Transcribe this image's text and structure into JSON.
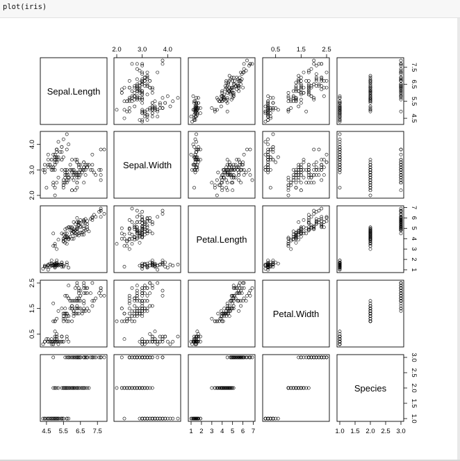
{
  "code_cell": {
    "text": "plot(iris)"
  },
  "chart_data": {
    "type": "scatter",
    "variables": [
      "Sepal.Length",
      "Sepal.Width",
      "Petal.Length",
      "Petal.Width",
      "Species"
    ],
    "ranges": [
      [
        4.3,
        7.9
      ],
      [
        2.0,
        4.4
      ],
      [
        1.0,
        6.9
      ],
      [
        0.1,
        2.5
      ],
      [
        1,
        3
      ]
    ],
    "ticks": [
      [
        "4.5",
        "5.5",
        "6.5",
        "7.5"
      ],
      [
        "2.0",
        "3.0",
        "4.0"
      ],
      [
        "1",
        "2",
        "3",
        "4",
        "5",
        "6",
        "7"
      ],
      [
        "0.5",
        "1.5",
        "2.5"
      ],
      [
        "1.0",
        "1.5",
        "2.0",
        "2.5",
        "3.0"
      ]
    ],
    "tick_axis": [
      "bottom",
      "top",
      "bottom",
      "top",
      "right"
    ],
    "ticks_left": [
      "2.0",
      "3.0",
      "4.0"
    ],
    "ticks_left_var": 1,
    "ticks_left_alt": [
      "0.5",
      "1.5",
      "2.5"
    ],
    "ticks_right_alt": [
      "1",
      "2",
      "3",
      "4",
      "5",
      "6",
      "7"
    ],
    "ticks_right_top": [
      "4.5",
      "5.5",
      "6.5",
      "7.5"
    ],
    "points": [
      [
        5.1,
        3.5,
        1.4,
        0.2,
        1
      ],
      [
        4.9,
        3.0,
        1.4,
        0.2,
        1
      ],
      [
        4.7,
        3.2,
        1.3,
        0.2,
        1
      ],
      [
        4.6,
        3.1,
        1.5,
        0.2,
        1
      ],
      [
        5.0,
        3.6,
        1.4,
        0.2,
        1
      ],
      [
        5.4,
        3.9,
        1.7,
        0.4,
        1
      ],
      [
        4.6,
        3.4,
        1.4,
        0.3,
        1
      ],
      [
        5.0,
        3.4,
        1.5,
        0.2,
        1
      ],
      [
        4.4,
        2.9,
        1.4,
        0.2,
        1
      ],
      [
        4.9,
        3.1,
        1.5,
        0.1,
        1
      ],
      [
        5.4,
        3.7,
        1.5,
        0.2,
        1
      ],
      [
        4.8,
        3.4,
        1.6,
        0.2,
        1
      ],
      [
        4.8,
        3.0,
        1.4,
        0.1,
        1
      ],
      [
        4.3,
        3.0,
        1.1,
        0.1,
        1
      ],
      [
        5.8,
        4.0,
        1.2,
        0.2,
        1
      ],
      [
        5.7,
        4.4,
        1.5,
        0.4,
        1
      ],
      [
        5.4,
        3.9,
        1.3,
        0.4,
        1
      ],
      [
        5.1,
        3.5,
        1.4,
        0.3,
        1
      ],
      [
        5.7,
        3.8,
        1.7,
        0.3,
        1
      ],
      [
        5.1,
        3.8,
        1.5,
        0.3,
        1
      ],
      [
        5.4,
        3.4,
        1.7,
        0.2,
        1
      ],
      [
        5.1,
        3.7,
        1.5,
        0.4,
        1
      ],
      [
        4.6,
        3.6,
        1.0,
        0.2,
        1
      ],
      [
        5.1,
        3.3,
        1.7,
        0.5,
        1
      ],
      [
        4.8,
        3.4,
        1.9,
        0.2,
        1
      ],
      [
        5.0,
        3.0,
        1.6,
        0.2,
        1
      ],
      [
        5.0,
        3.4,
        1.6,
        0.4,
        1
      ],
      [
        5.2,
        3.5,
        1.5,
        0.2,
        1
      ],
      [
        5.2,
        3.4,
        1.4,
        0.2,
        1
      ],
      [
        4.7,
        3.2,
        1.6,
        0.2,
        1
      ],
      [
        4.8,
        3.1,
        1.6,
        0.2,
        1
      ],
      [
        5.4,
        3.4,
        1.5,
        0.4,
        1
      ],
      [
        5.2,
        4.1,
        1.5,
        0.1,
        1
      ],
      [
        5.5,
        4.2,
        1.4,
        0.2,
        1
      ],
      [
        4.9,
        3.1,
        1.5,
        0.2,
        1
      ],
      [
        5.0,
        3.2,
        1.2,
        0.2,
        1
      ],
      [
        5.5,
        3.5,
        1.3,
        0.2,
        1
      ],
      [
        4.9,
        3.6,
        1.4,
        0.1,
        1
      ],
      [
        4.4,
        3.0,
        1.3,
        0.2,
        1
      ],
      [
        5.1,
        3.4,
        1.5,
        0.2,
        1
      ],
      [
        5.0,
        3.5,
        1.3,
        0.3,
        1
      ],
      [
        4.5,
        2.3,
        1.3,
        0.3,
        1
      ],
      [
        4.4,
        3.2,
        1.3,
        0.2,
        1
      ],
      [
        5.0,
        3.5,
        1.6,
        0.6,
        1
      ],
      [
        5.1,
        3.8,
        1.9,
        0.4,
        1
      ],
      [
        4.8,
        3.0,
        1.4,
        0.3,
        1
      ],
      [
        5.1,
        3.8,
        1.6,
        0.2,
        1
      ],
      [
        4.6,
        3.2,
        1.4,
        0.2,
        1
      ],
      [
        5.3,
        3.7,
        1.5,
        0.2,
        1
      ],
      [
        5.0,
        3.3,
        1.4,
        0.2,
        1
      ],
      [
        7.0,
        3.2,
        4.7,
        1.4,
        2
      ],
      [
        6.4,
        3.2,
        4.5,
        1.5,
        2
      ],
      [
        6.9,
        3.1,
        4.9,
        1.5,
        2
      ],
      [
        5.5,
        2.3,
        4.0,
        1.3,
        2
      ],
      [
        6.5,
        2.8,
        4.6,
        1.5,
        2
      ],
      [
        5.7,
        2.8,
        4.5,
        1.3,
        2
      ],
      [
        6.3,
        3.3,
        4.7,
        1.6,
        2
      ],
      [
        4.9,
        2.4,
        3.3,
        1.0,
        2
      ],
      [
        6.6,
        2.9,
        4.6,
        1.3,
        2
      ],
      [
        5.2,
        2.7,
        3.9,
        1.4,
        2
      ],
      [
        5.0,
        2.0,
        3.5,
        1.0,
        2
      ],
      [
        5.9,
        3.0,
        4.2,
        1.5,
        2
      ],
      [
        6.0,
        2.2,
        4.0,
        1.0,
        2
      ],
      [
        6.1,
        2.9,
        4.7,
        1.4,
        2
      ],
      [
        5.6,
        2.9,
        3.6,
        1.3,
        2
      ],
      [
        6.7,
        3.1,
        4.4,
        1.4,
        2
      ],
      [
        5.6,
        3.0,
        4.5,
        1.5,
        2
      ],
      [
        5.8,
        2.7,
        4.1,
        1.0,
        2
      ],
      [
        6.2,
        2.2,
        4.5,
        1.5,
        2
      ],
      [
        5.6,
        2.5,
        3.9,
        1.1,
        2
      ],
      [
        5.9,
        3.2,
        4.8,
        1.8,
        2
      ],
      [
        6.1,
        2.8,
        4.0,
        1.3,
        2
      ],
      [
        6.3,
        2.5,
        4.9,
        1.5,
        2
      ],
      [
        6.1,
        2.8,
        4.7,
        1.2,
        2
      ],
      [
        6.4,
        2.9,
        4.3,
        1.3,
        2
      ],
      [
        6.6,
        3.0,
        4.4,
        1.4,
        2
      ],
      [
        6.8,
        2.8,
        4.8,
        1.4,
        2
      ],
      [
        6.7,
        3.0,
        5.0,
        1.7,
        2
      ],
      [
        6.0,
        2.9,
        4.5,
        1.5,
        2
      ],
      [
        5.7,
        2.6,
        3.5,
        1.0,
        2
      ],
      [
        5.5,
        2.4,
        3.8,
        1.1,
        2
      ],
      [
        5.5,
        2.4,
        3.7,
        1.0,
        2
      ],
      [
        5.8,
        2.7,
        3.9,
        1.2,
        2
      ],
      [
        6.0,
        2.7,
        5.1,
        1.6,
        2
      ],
      [
        5.4,
        3.0,
        4.5,
        1.5,
        2
      ],
      [
        6.0,
        3.4,
        4.5,
        1.6,
        2
      ],
      [
        6.7,
        3.1,
        4.7,
        1.5,
        2
      ],
      [
        6.3,
        2.3,
        4.4,
        1.3,
        2
      ],
      [
        5.6,
        3.0,
        4.1,
        1.3,
        2
      ],
      [
        5.5,
        2.5,
        4.0,
        1.3,
        2
      ],
      [
        5.5,
        2.6,
        4.4,
        1.2,
        2
      ],
      [
        6.1,
        3.0,
        4.6,
        1.4,
        2
      ],
      [
        5.8,
        2.6,
        4.0,
        1.2,
        2
      ],
      [
        5.0,
        2.3,
        3.3,
        1.0,
        2
      ],
      [
        5.6,
        2.7,
        4.2,
        1.3,
        2
      ],
      [
        5.7,
        3.0,
        4.2,
        1.2,
        2
      ],
      [
        5.7,
        2.9,
        4.2,
        1.3,
        2
      ],
      [
        6.2,
        2.9,
        4.3,
        1.3,
        2
      ],
      [
        5.1,
        2.5,
        3.0,
        1.1,
        2
      ],
      [
        5.7,
        2.8,
        4.1,
        1.3,
        2
      ],
      [
        6.3,
        3.3,
        6.0,
        2.5,
        3
      ],
      [
        5.8,
        2.7,
        5.1,
        1.9,
        3
      ],
      [
        7.1,
        3.0,
        5.9,
        2.1,
        3
      ],
      [
        6.3,
        2.9,
        5.6,
        1.8,
        3
      ],
      [
        6.5,
        3.0,
        5.8,
        2.2,
        3
      ],
      [
        7.6,
        3.0,
        6.6,
        2.1,
        3
      ],
      [
        4.9,
        2.5,
        4.5,
        1.7,
        3
      ],
      [
        7.3,
        2.9,
        6.3,
        1.8,
        3
      ],
      [
        6.7,
        2.5,
        5.8,
        1.8,
        3
      ],
      [
        7.2,
        3.6,
        6.1,
        2.5,
        3
      ],
      [
        6.5,
        3.2,
        5.1,
        2.0,
        3
      ],
      [
        6.4,
        2.7,
        5.3,
        1.9,
        3
      ],
      [
        6.8,
        3.0,
        5.5,
        2.1,
        3
      ],
      [
        5.7,
        2.5,
        5.0,
        2.0,
        3
      ],
      [
        5.8,
        2.8,
        5.1,
        2.4,
        3
      ],
      [
        6.4,
        3.2,
        5.3,
        2.3,
        3
      ],
      [
        6.5,
        3.0,
        5.5,
        1.8,
        3
      ],
      [
        7.7,
        3.8,
        6.7,
        2.2,
        3
      ],
      [
        7.7,
        2.6,
        6.9,
        2.3,
        3
      ],
      [
        6.0,
        2.2,
        5.0,
        1.5,
        3
      ],
      [
        6.9,
        3.2,
        5.7,
        2.3,
        3
      ],
      [
        5.6,
        2.8,
        4.9,
        2.0,
        3
      ],
      [
        7.7,
        2.8,
        6.7,
        2.0,
        3
      ],
      [
        6.3,
        2.7,
        4.9,
        1.8,
        3
      ],
      [
        6.7,
        3.3,
        5.7,
        2.1,
        3
      ],
      [
        7.2,
        3.2,
        6.0,
        1.8,
        3
      ],
      [
        6.2,
        2.8,
        4.8,
        1.8,
        3
      ],
      [
        6.1,
        3.0,
        4.9,
        1.8,
        3
      ],
      [
        6.4,
        2.8,
        5.6,
        2.1,
        3
      ],
      [
        7.2,
        3.0,
        5.8,
        1.6,
        3
      ],
      [
        7.4,
        2.8,
        6.1,
        1.9,
        3
      ],
      [
        7.9,
        3.8,
        6.4,
        2.0,
        3
      ],
      [
        6.4,
        2.8,
        5.6,
        2.2,
        3
      ],
      [
        6.3,
        2.8,
        5.1,
        1.5,
        3
      ],
      [
        6.1,
        2.6,
        5.6,
        1.4,
        3
      ],
      [
        7.7,
        3.0,
        6.1,
        2.3,
        3
      ],
      [
        6.3,
        3.4,
        5.6,
        2.4,
        3
      ],
      [
        6.4,
        3.1,
        5.5,
        1.8,
        3
      ],
      [
        6.0,
        3.0,
        4.8,
        1.8,
        3
      ],
      [
        6.9,
        3.1,
        5.4,
        2.1,
        3
      ],
      [
        6.7,
        3.1,
        5.6,
        2.4,
        3
      ],
      [
        6.9,
        3.1,
        5.1,
        2.3,
        3
      ],
      [
        5.8,
        2.7,
        5.1,
        1.9,
        3
      ],
      [
        6.8,
        3.2,
        5.9,
        2.3,
        3
      ],
      [
        6.7,
        3.3,
        5.7,
        2.5,
        3
      ],
      [
        6.7,
        3.0,
        5.2,
        2.3,
        3
      ],
      [
        6.3,
        2.5,
        5.0,
        1.9,
        3
      ],
      [
        6.5,
        3.0,
        5.2,
        2.0,
        3
      ],
      [
        6.2,
        3.4,
        5.4,
        2.3,
        3
      ],
      [
        5.9,
        3.0,
        5.1,
        1.8,
        3
      ]
    ]
  }
}
